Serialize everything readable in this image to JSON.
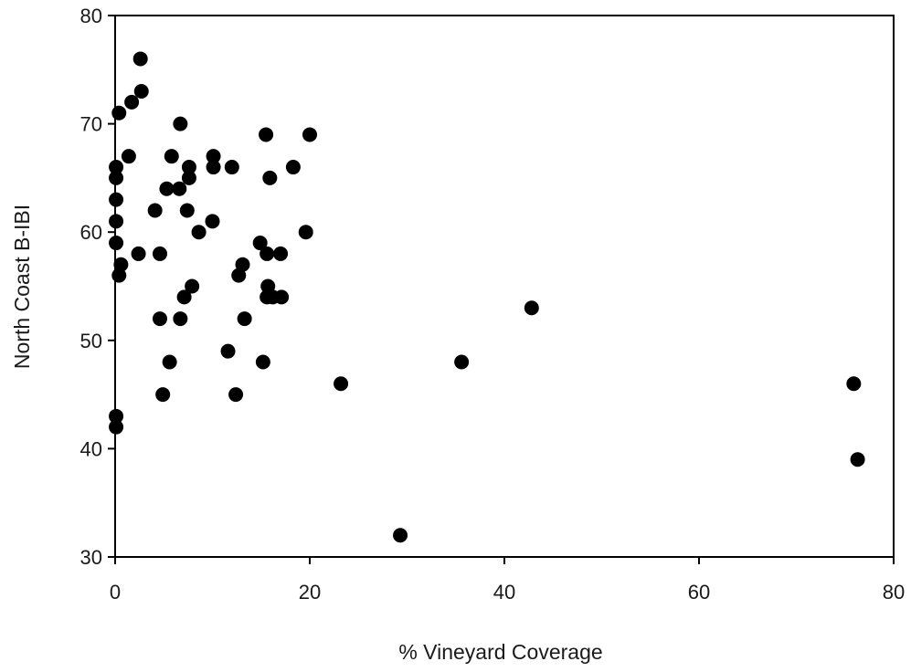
{
  "chart_data": {
    "type": "scatter",
    "title": "",
    "xlabel": "% Vineyard Coverage",
    "ylabel": "North Coast B-IBI",
    "xlim": [
      0,
      80
    ],
    "ylim": [
      30,
      80
    ],
    "xticks": [
      "0",
      "20",
      "40",
      "60",
      "80"
    ],
    "yticks": [
      "30",
      "40",
      "50",
      "60",
      "70",
      "80"
    ],
    "grid": false,
    "legend": "none",
    "marker_color": "#000000",
    "points": [
      {
        "x": 2.6,
        "y": 76
      },
      {
        "x": 2.7,
        "y": 73
      },
      {
        "x": 1.7,
        "y": 72
      },
      {
        "x": 0.4,
        "y": 71
      },
      {
        "x": 6.7,
        "y": 70
      },
      {
        "x": 15.5,
        "y": 69
      },
      {
        "x": 20.0,
        "y": 69
      },
      {
        "x": 1.4,
        "y": 67
      },
      {
        "x": 5.8,
        "y": 67
      },
      {
        "x": 10.1,
        "y": 67
      },
      {
        "x": 0.1,
        "y": 66
      },
      {
        "x": 7.6,
        "y": 66
      },
      {
        "x": 10.1,
        "y": 66
      },
      {
        "x": 12.0,
        "y": 66
      },
      {
        "x": 18.3,
        "y": 66
      },
      {
        "x": 0.1,
        "y": 65
      },
      {
        "x": 7.6,
        "y": 65
      },
      {
        "x": 15.9,
        "y": 65
      },
      {
        "x": 5.3,
        "y": 64
      },
      {
        "x": 6.6,
        "y": 64
      },
      {
        "x": 0.1,
        "y": 63
      },
      {
        "x": 4.1,
        "y": 62
      },
      {
        "x": 7.4,
        "y": 62
      },
      {
        "x": 0.1,
        "y": 61
      },
      {
        "x": 10.0,
        "y": 61
      },
      {
        "x": 8.6,
        "y": 60
      },
      {
        "x": 19.6,
        "y": 60
      },
      {
        "x": 0.1,
        "y": 59
      },
      {
        "x": 14.9,
        "y": 59
      },
      {
        "x": 2.4,
        "y": 58
      },
      {
        "x": 4.6,
        "y": 58
      },
      {
        "x": 15.6,
        "y": 58
      },
      {
        "x": 17.0,
        "y": 58
      },
      {
        "x": 0.6,
        "y": 57
      },
      {
        "x": 13.1,
        "y": 57
      },
      {
        "x": 0.4,
        "y": 56
      },
      {
        "x": 12.7,
        "y": 56
      },
      {
        "x": 7.9,
        "y": 55
      },
      {
        "x": 15.7,
        "y": 55
      },
      {
        "x": 7.1,
        "y": 54
      },
      {
        "x": 15.6,
        "y": 54
      },
      {
        "x": 16.2,
        "y": 54
      },
      {
        "x": 17.1,
        "y": 54
      },
      {
        "x": 42.8,
        "y": 53
      },
      {
        "x": 4.6,
        "y": 52
      },
      {
        "x": 6.7,
        "y": 52
      },
      {
        "x": 13.3,
        "y": 52
      },
      {
        "x": 11.6,
        "y": 49
      },
      {
        "x": 5.6,
        "y": 48
      },
      {
        "x": 15.2,
        "y": 48
      },
      {
        "x": 35.6,
        "y": 48
      },
      {
        "x": 23.2,
        "y": 46
      },
      {
        "x": 75.9,
        "y": 46
      },
      {
        "x": 4.9,
        "y": 45
      },
      {
        "x": 12.4,
        "y": 45
      },
      {
        "x": 0.1,
        "y": 43
      },
      {
        "x": 0.1,
        "y": 42
      },
      {
        "x": 76.3,
        "y": 39
      },
      {
        "x": 29.3,
        "y": 32
      }
    ]
  }
}
